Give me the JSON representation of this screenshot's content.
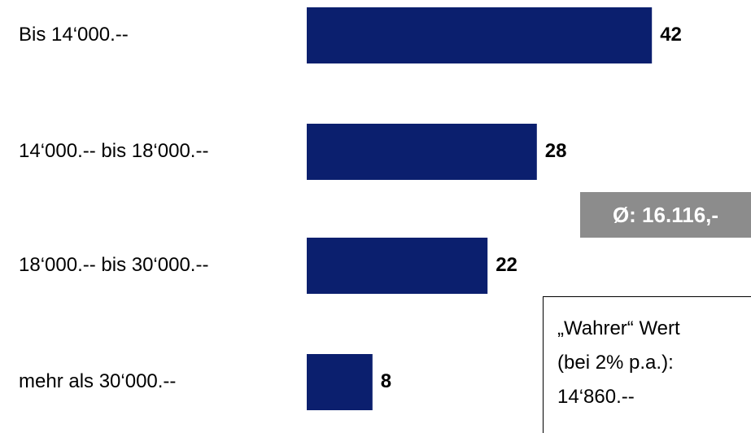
{
  "chart_data": {
    "type": "bar",
    "orientation": "horizontal",
    "categories": [
      "Bis 14‘000.--",
      "14‘000.-- bis 18‘000.--",
      "18‘000.-- bis 30‘000.--",
      "mehr als 30‘000.--"
    ],
    "values": [
      42,
      28,
      22,
      8
    ],
    "bar_color": "#0b1f6e",
    "grid": false,
    "legend": "none"
  },
  "average_label": "Ø: 16.116,-",
  "note": {
    "line1": "„Wahrer“ Wert",
    "line2": "(bei 2% p.a.):",
    "line3": "14‘860.--"
  }
}
